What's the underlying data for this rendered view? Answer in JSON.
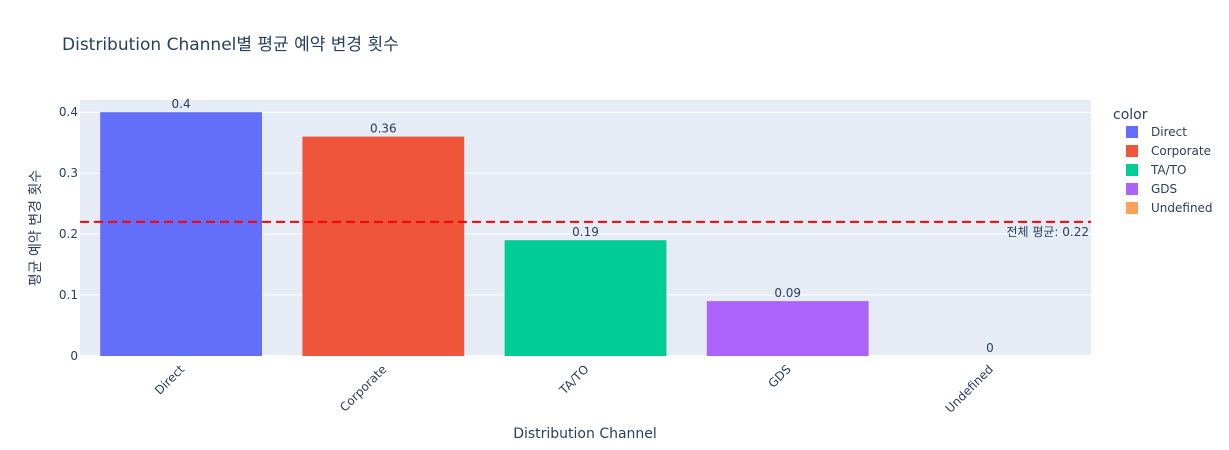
{
  "chart_data": {
    "type": "bar",
    "title": "Distribution Channel별 평균 예약 변경 횟수",
    "xlabel": "Distribution Channel",
    "ylabel": "평균 예약 변경 횟수",
    "categories": [
      "Direct",
      "Corporate",
      "TA/TO",
      "GDS",
      "Undefined"
    ],
    "values": [
      0.4,
      0.36,
      0.19,
      0.09,
      0
    ],
    "value_labels": [
      "0.4",
      "0.36",
      "0.19",
      "0.09",
      "0"
    ],
    "colors": [
      "#636efa",
      "#EF553B",
      "#00cc96",
      "#ab63fa",
      "#FFA15A"
    ],
    "ylim": [
      0,
      0.42
    ],
    "yticks": [
      0,
      0.1,
      0.2,
      0.3,
      0.4
    ],
    "ytick_labels": [
      "0",
      "0.1",
      "0.2",
      "0.3",
      "0.4"
    ],
    "grid": true,
    "legend": {
      "title": "color",
      "placement": "right",
      "entries": [
        "Direct",
        "Corporate",
        "TA/TO",
        "GDS",
        "Undefined"
      ]
    },
    "reference_line": {
      "value": 0.22,
      "label": "전체 평균: 0.22",
      "color": "#ff0000",
      "style": "dashed"
    }
  }
}
